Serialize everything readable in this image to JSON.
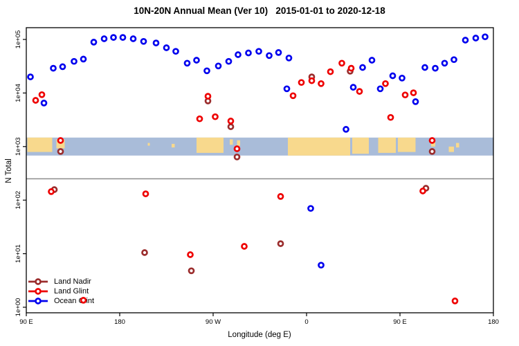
{
  "chart_data": {
    "type": "scatter",
    "title": "10N-20N Annual Mean (Ver 10)   2015-01-01 to 2020-12-18",
    "xlabel": "Longitude (deg E)",
    "ylabel": "N Total",
    "x_axis": {
      "tick_labels": [
        "90 E",
        "180",
        "90 W",
        "0",
        "90 E",
        "180"
      ],
      "tick_axis_deg": [
        0,
        90,
        180,
        270,
        360,
        450
      ],
      "span_deg": 450,
      "note": "axis wraps: starts at 90E, crosses dateline and Greenwich, ends at 180"
    },
    "y_axis": {
      "scale": "log10",
      "tick_labels": [
        "1e+00",
        "1e+01",
        "1e+02",
        "1e+03",
        "1e+04",
        "1e+05"
      ],
      "tick_values": [
        1,
        10,
        100,
        1000,
        10000,
        100000
      ]
    },
    "reference_line": {
      "value": 250,
      "color": "#8c8c8c"
    },
    "map_band": {
      "center_value": 1000,
      "ocean_color": "#A9BCD9",
      "land_color": "#F8D98D",
      "land_segments": [
        {
          "d0": 1,
          "d1": 25,
          "f0": 0,
          "f1": 0.8
        },
        {
          "d0": 29,
          "d1": 37,
          "f0": 0.1,
          "f1": 0.6
        },
        {
          "d0": 117,
          "d1": 119,
          "f0": 0.3,
          "f1": 0.45
        },
        {
          "d0": 140,
          "d1": 143,
          "f0": 0.35,
          "f1": 0.55
        },
        {
          "d0": 164,
          "d1": 190,
          "f0": 0,
          "f1": 0.85
        },
        {
          "d0": 196,
          "d1": 199,
          "f0": 0.1,
          "f1": 0.4
        },
        {
          "d0": 203,
          "d1": 206,
          "f0": 0.15,
          "f1": 0.45
        },
        {
          "d0": 252,
          "d1": 312,
          "f0": 0,
          "f1": 1
        },
        {
          "d0": 314,
          "d1": 330,
          "f0": 0,
          "f1": 0.9
        },
        {
          "d0": 339,
          "d1": 356,
          "f0": 0,
          "f1": 0.85
        },
        {
          "d0": 358,
          "d1": 375,
          "f0": 0,
          "f1": 0.8
        },
        {
          "d0": 390,
          "d1": 394,
          "f0": 0.15,
          "f1": 0.5
        },
        {
          "d0": 407,
          "d1": 412,
          "f0": 0.5,
          "f1": 0.8
        },
        {
          "d0": 414,
          "d1": 417,
          "f0": 0.3,
          "f1": 0.55
        }
      ]
    },
    "legend": {
      "position": "bottom-left",
      "entries": [
        {
          "label": "Land Nadir",
          "color": "#9B2D2D"
        },
        {
          "label": "Land Glint",
          "color": "#EE0000"
        },
        {
          "label": "Ocean Glint",
          "color": "#0000EE"
        }
      ]
    },
    "series": [
      {
        "name": "Land Nadir",
        "color": "#9B2D2D",
        "marker": "open-circle",
        "points": [
          [
            27,
            157
          ],
          [
            33,
            810
          ],
          [
            114,
            10.5
          ],
          [
            159,
            4.8
          ],
          [
            175,
            7100
          ],
          [
            197,
            2350
          ],
          [
            203,
            640
          ],
          [
            245,
            15.4
          ],
          [
            275,
            20000
          ],
          [
            312,
            25500
          ],
          [
            385,
            167
          ],
          [
            391,
            810
          ]
        ]
      },
      {
        "name": "Land Glint",
        "color": "#EE0000",
        "marker": "open-circle",
        "points": [
          [
            9,
            7300
          ],
          [
            15,
            9300
          ],
          [
            24,
            144
          ],
          [
            33,
            1300
          ],
          [
            55,
            1.35
          ],
          [
            115,
            131
          ],
          [
            158,
            9.6
          ],
          [
            167,
            3300
          ],
          [
            175,
            8700
          ],
          [
            182,
            3600
          ],
          [
            197,
            3000
          ],
          [
            203,
            910
          ],
          [
            210,
            13.7
          ],
          [
            245,
            117
          ],
          [
            257,
            8900
          ],
          [
            265,
            15700
          ],
          [
            275,
            17000
          ],
          [
            284,
            15000
          ],
          [
            293,
            25000
          ],
          [
            304,
            36000
          ],
          [
            313,
            29000
          ],
          [
            321,
            10700
          ],
          [
            346,
            15000
          ],
          [
            351,
            3500
          ],
          [
            365,
            9200
          ],
          [
            373,
            10100
          ],
          [
            382,
            148
          ],
          [
            391,
            1300
          ],
          [
            413,
            1.31
          ]
        ]
      },
      {
        "name": "Ocean Glint",
        "color": "#0000EE",
        "marker": "open-circle",
        "points": [
          [
            4,
            20000
          ],
          [
            17,
            6500
          ],
          [
            26,
            29000
          ],
          [
            35,
            31000
          ],
          [
            46,
            39000
          ],
          [
            55,
            43000
          ],
          [
            65,
            89000
          ],
          [
            75,
            103000
          ],
          [
            84,
            109000
          ],
          [
            93,
            109000
          ],
          [
            103,
            103000
          ],
          [
            113,
            92000
          ],
          [
            125,
            86000
          ],
          [
            135,
            70000
          ],
          [
            144,
            60000
          ],
          [
            155,
            36000
          ],
          [
            164,
            41000
          ],
          [
            174,
            26000
          ],
          [
            185,
            32000
          ],
          [
            195,
            39000
          ],
          [
            204,
            52000
          ],
          [
            214,
            56000
          ],
          [
            224,
            60000
          ],
          [
            234,
            50000
          ],
          [
            243,
            57000
          ],
          [
            253,
            45000
          ],
          [
            251,
            12000
          ],
          [
            274,
            70
          ],
          [
            284,
            6.1
          ],
          [
            308,
            2100
          ],
          [
            315,
            12800
          ],
          [
            324,
            30000
          ],
          [
            333,
            41000
          ],
          [
            341,
            12000
          ],
          [
            353,
            21000
          ],
          [
            362,
            19000
          ],
          [
            375,
            6900
          ],
          [
            384,
            30000
          ],
          [
            394,
            29000
          ],
          [
            403,
            36000
          ],
          [
            412,
            42000
          ],
          [
            423,
            97000
          ],
          [
            433,
            106000
          ],
          [
            442,
            112000
          ]
        ]
      }
    ]
  }
}
